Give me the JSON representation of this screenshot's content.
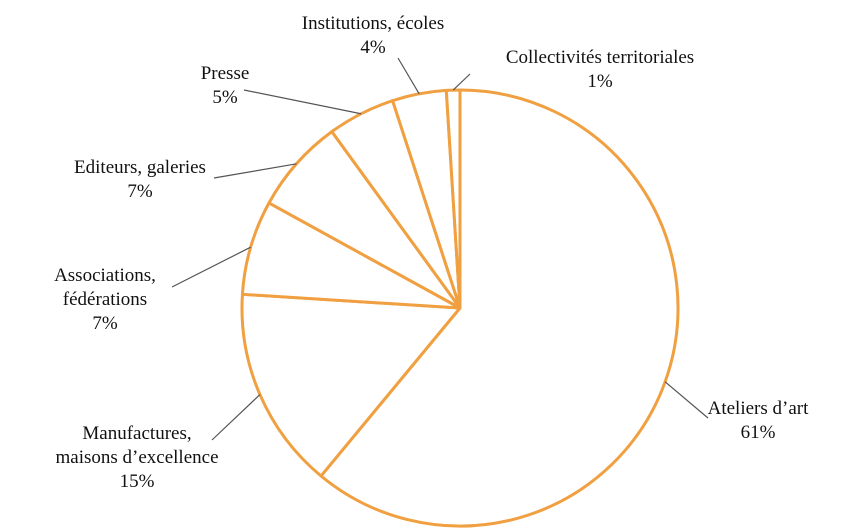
{
  "chart_data": {
    "type": "pie",
    "title": "",
    "style": {
      "slice_fill": "#ffffff",
      "slice_stroke": "#f0a040",
      "leader_color": "#555555"
    },
    "slices": [
      {
        "label_lines": [
          "Ateliers d’art"
        ],
        "value": 61,
        "value_label": "61%"
      },
      {
        "label_lines": [
          "Manufactures,",
          "maisons d’excellence"
        ],
        "value": 15,
        "value_label": "15%"
      },
      {
        "label_lines": [
          "Associations,",
          "fédérations"
        ],
        "value": 7,
        "value_label": "7%"
      },
      {
        "label_lines": [
          "Editeurs, galeries"
        ],
        "value": 7,
        "value_label": "7%"
      },
      {
        "label_lines": [
          "Presse"
        ],
        "value": 5,
        "value_label": "5%"
      },
      {
        "label_lines": [
          "Institutions, écoles"
        ],
        "value": 4,
        "value_label": "4%"
      },
      {
        "label_lines": [
          "Collectivités territoriales"
        ],
        "value": 1,
        "value_label": "1%"
      }
    ]
  }
}
